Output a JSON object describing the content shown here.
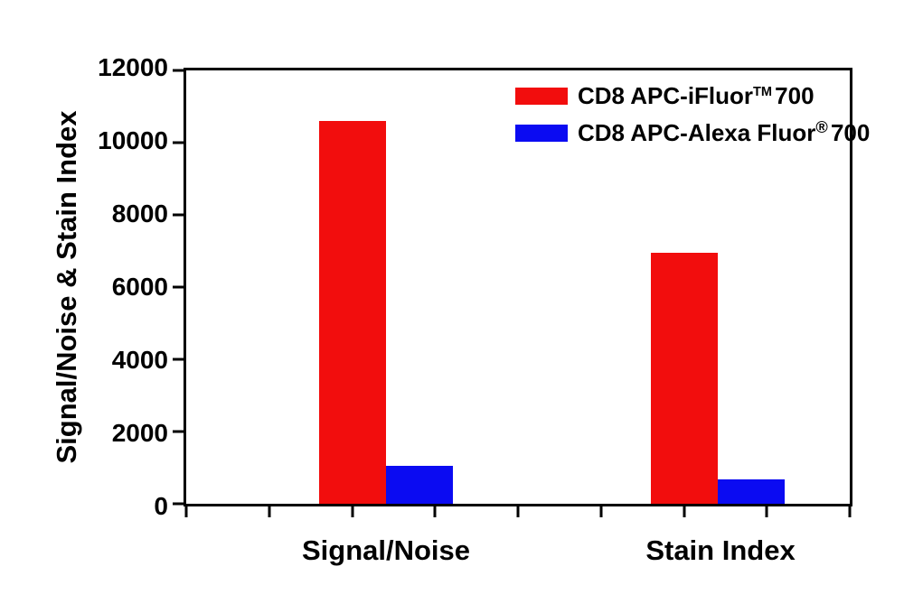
{
  "chart_data": {
    "type": "bar",
    "title": "",
    "categories": [
      "Signal/Noise",
      "Stain Index"
    ],
    "series": [
      {
        "name": "CD8 APC-iFluor TM 700",
        "color": "#F20D0D",
        "values": [
          10600,
          6950
        ]
      },
      {
        "name": "CD8 APC-Alexa Fluor (R) 700",
        "color": "#0B0BF2",
        "values": [
          1050,
          680
        ]
      }
    ],
    "xlabel": "",
    "ylabel": "Signal/Noise & Stain Index",
    "ylim": [
      0,
      12000
    ],
    "ytick_interval": 2000,
    "ytick_labels": [
      "12000",
      "10000",
      "8000",
      "6000",
      "4000",
      "2000",
      "0"
    ],
    "x_minor_tick_count": 9,
    "grid": false,
    "legend_position": "top-right",
    "frame": "full-box"
  },
  "legend": {
    "items": [
      {
        "prefix": "CD8 APC-iFluor",
        "sup": "TM",
        "suffix": "700"
      },
      {
        "prefix": "CD8 APC-Alexa Fluor",
        "sup": "®",
        "suffix": "700"
      }
    ]
  }
}
